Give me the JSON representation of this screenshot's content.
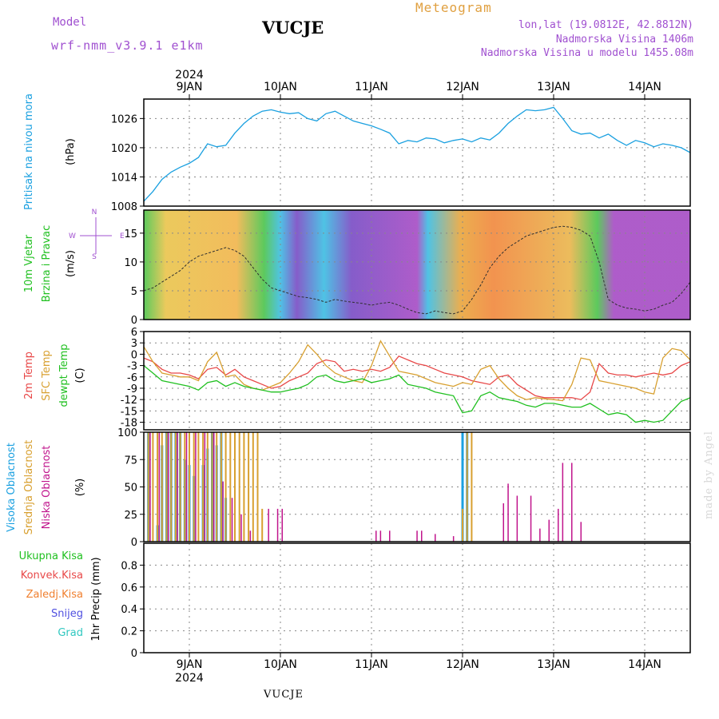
{
  "header": {
    "model_label": "Model",
    "model_name": "wrf-nmm_v3.9.1 e1km",
    "title": "VUCJE",
    "meteogram_label": "Meteogram",
    "lonlat": "lon,lat (19.0812E, 42.8812N)",
    "elevation": "Nadmorska Visina 1406m",
    "model_elevation": "Nadmorska Visina u modelu 1455.08m"
  },
  "footer_title": "VUCJE",
  "watermark": "made by Angel",
  "colors": {
    "pressure": "#1aa0e0",
    "temp2m": "#e84848",
    "sfc": "#d8a030",
    "dewpt": "#20c020",
    "high_cloud": "#1aa0e0",
    "mid_cloud": "#d8a030",
    "low_cloud": "#c0148c",
    "frame": "#000000",
    "grid": "#888888"
  },
  "chart_data": [
    {
      "type": "line",
      "title": "",
      "ylabel_lines": [
        "Pritisak na nivou mora",
        "(hPa)"
      ],
      "ylim": [
        1008,
        1030
      ],
      "yticks": [
        "1008",
        "1014",
        "1020",
        "1026"
      ],
      "xlim": [
        8.5,
        14.5
      ],
      "x_day_labels": [
        "9JAN",
        "10JAN",
        "11JAN",
        "12JAN",
        "13JAN",
        "14JAN"
      ],
      "top_year": "2024",
      "series": [
        {
          "name": "pressure",
          "x": [
            8.5,
            8.6,
            8.7,
            8.8,
            8.9,
            9.0,
            9.1,
            9.2,
            9.3,
            9.4,
            9.5,
            9.6,
            9.7,
            9.8,
            9.9,
            10.0,
            10.1,
            10.2,
            10.3,
            10.4,
            10.5,
            10.6,
            10.7,
            10.8,
            10.9,
            11.0,
            11.1,
            11.2,
            11.3,
            11.4,
            11.5,
            11.6,
            11.7,
            11.8,
            11.9,
            12.0,
            12.1,
            12.2,
            12.3,
            12.4,
            12.5,
            12.6,
            12.7,
            12.8,
            12.9,
            13.0,
            13.1,
            13.2,
            13.3,
            13.4,
            13.5,
            13.6,
            13.7,
            13.8,
            13.9,
            14.0,
            14.1,
            14.2,
            14.3,
            14.4,
            14.5
          ],
          "values": [
            1009.0,
            1011.0,
            1013.5,
            1015.0,
            1016.0,
            1016.8,
            1018.0,
            1020.8,
            1020.2,
            1020.5,
            1023.0,
            1025.0,
            1026.5,
            1027.5,
            1027.8,
            1027.3,
            1027.0,
            1027.2,
            1026.0,
            1025.5,
            1027.0,
            1027.5,
            1026.5,
            1025.5,
            1025.0,
            1024.5,
            1023.8,
            1023.0,
            1020.8,
            1021.5,
            1021.2,
            1022.0,
            1021.8,
            1021.0,
            1021.5,
            1021.8,
            1021.2,
            1022.0,
            1021.6,
            1023.0,
            1025.0,
            1026.5,
            1027.8,
            1027.6,
            1027.8,
            1028.3,
            1026.0,
            1023.5,
            1022.8,
            1023.0,
            1022.0,
            1022.8,
            1021.5,
            1020.5,
            1021.5,
            1021.0,
            1020.2,
            1020.8,
            1020.5,
            1020.0,
            1019.0
          ]
        }
      ]
    },
    {
      "type": "line",
      "title": "",
      "ylabel_lines": [
        "10m Vjetar",
        "Brzina i Pravac",
        "(m/s)"
      ],
      "compass_labels": [
        "W",
        "E",
        "N",
        "S"
      ],
      "ylim": [
        0,
        19
      ],
      "yticks": [
        "0",
        "5",
        "10",
        "15"
      ],
      "xlim": [
        8.5,
        14.5
      ],
      "series": [
        {
          "name": "wind speed",
          "x": [
            8.5,
            8.6,
            8.7,
            8.8,
            8.9,
            9.0,
            9.1,
            9.2,
            9.3,
            9.4,
            9.5,
            9.6,
            9.7,
            9.8,
            9.9,
            10.0,
            10.1,
            10.2,
            10.3,
            10.4,
            10.5,
            10.6,
            10.7,
            10.8,
            10.9,
            11.0,
            11.1,
            11.2,
            11.3,
            11.4,
            11.5,
            11.6,
            11.7,
            11.8,
            11.9,
            12.0,
            12.1,
            12.2,
            12.3,
            12.4,
            12.5,
            12.6,
            12.7,
            12.8,
            12.9,
            13.0,
            13.1,
            13.2,
            13.3,
            13.4,
            13.5,
            13.6,
            13.7,
            13.8,
            13.9,
            14.0,
            14.1,
            14.2,
            14.3,
            14.4,
            14.5
          ],
          "values": [
            5.0,
            5.5,
            6.5,
            7.5,
            8.5,
            10.0,
            11.0,
            11.5,
            12.0,
            12.5,
            12.0,
            11.0,
            9.0,
            7.0,
            5.5,
            5.0,
            4.5,
            4.0,
            3.8,
            3.5,
            3.0,
            3.5,
            3.2,
            3.0,
            2.8,
            2.5,
            2.8,
            3.0,
            2.5,
            1.8,
            1.2,
            1.0,
            1.5,
            1.2,
            1.0,
            1.5,
            3.5,
            6.0,
            9.0,
            11.0,
            12.5,
            13.5,
            14.5,
            15.0,
            15.5,
            16.0,
            16.2,
            16.0,
            15.5,
            14.5,
            10.0,
            3.5,
            2.5,
            2.0,
            1.8,
            1.5,
            1.8,
            2.5,
            3.0,
            4.5,
            6.5
          ]
        }
      ]
    },
    {
      "type": "line",
      "title": "",
      "ylabel_lines": [
        "2m Temp",
        "SFC Temp",
        "dewpt Temp",
        "(C)"
      ],
      "ylim": [
        -20,
        6
      ],
      "yticks": [
        "-18",
        "-15",
        "-12",
        "-9",
        "-6",
        "-3",
        "0",
        "3",
        "6"
      ],
      "xlim": [
        8.5,
        14.5
      ],
      "series": [
        {
          "name": "2m Temp",
          "x": [
            8.5,
            8.6,
            8.7,
            8.8,
            8.9,
            9.0,
            9.1,
            9.2,
            9.3,
            9.4,
            9.5,
            9.6,
            9.7,
            9.8,
            9.9,
            10.0,
            10.1,
            10.2,
            10.3,
            10.4,
            10.5,
            10.6,
            10.7,
            10.8,
            10.9,
            11.0,
            11.1,
            11.2,
            11.3,
            11.4,
            11.5,
            11.6,
            11.7,
            11.8,
            11.9,
            12.0,
            12.1,
            12.2,
            12.3,
            12.4,
            12.5,
            12.6,
            12.7,
            12.8,
            12.9,
            13.0,
            13.1,
            13.2,
            13.3,
            13.4,
            13.5,
            13.6,
            13.7,
            13.8,
            13.9,
            14.0,
            14.1,
            14.2,
            14.3,
            14.4,
            14.5
          ],
          "values": [
            -1.0,
            -2.0,
            -4.0,
            -5.0,
            -5.0,
            -5.5,
            -6.5,
            -4.0,
            -3.5,
            -5.5,
            -4.0,
            -6.0,
            -7.0,
            -8.0,
            -9.0,
            -8.5,
            -7.0,
            -6.0,
            -5.0,
            -2.5,
            -1.5,
            -2.0,
            -4.5,
            -4.0,
            -4.5,
            -4.0,
            -4.5,
            -3.5,
            -0.5,
            -1.5,
            -2.5,
            -3.0,
            -4.0,
            -5.0,
            -5.5,
            -6.0,
            -7.0,
            -7.5,
            -8.0,
            -6.0,
            -5.5,
            -8.0,
            -9.5,
            -11.0,
            -11.5,
            -11.5,
            -11.5,
            -11.5,
            -12.0,
            -10.0,
            -2.5,
            -5.0,
            -5.5,
            -5.5,
            -6.0,
            -5.5,
            -5.0,
            -5.5,
            -5.0,
            -3.0,
            -2.0
          ]
        },
        {
          "name": "SFC Temp",
          "x": [
            8.5,
            8.6,
            8.7,
            8.8,
            8.9,
            9.0,
            9.1,
            9.2,
            9.3,
            9.4,
            9.5,
            9.6,
            9.7,
            9.8,
            9.9,
            10.0,
            10.1,
            10.2,
            10.3,
            10.4,
            10.5,
            10.6,
            10.7,
            10.8,
            10.9,
            11.0,
            11.1,
            11.2,
            11.3,
            11.4,
            11.5,
            11.6,
            11.7,
            11.8,
            11.9,
            12.0,
            12.1,
            12.2,
            12.3,
            12.4,
            12.5,
            12.6,
            12.7,
            12.8,
            12.9,
            13.0,
            13.1,
            13.2,
            13.3,
            13.4,
            13.5,
            13.6,
            13.7,
            13.8,
            13.9,
            14.0,
            14.1,
            14.2,
            14.3,
            14.4,
            14.5
          ],
          "values": [
            2.0,
            -2.0,
            -5.0,
            -5.5,
            -6.0,
            -6.0,
            -7.0,
            -2.0,
            0.5,
            -6.0,
            -5.5,
            -8.0,
            -9.0,
            -9.5,
            -8.5,
            -7.5,
            -5.0,
            -2.0,
            2.5,
            0.0,
            -3.0,
            -5.0,
            -6.0,
            -7.0,
            -7.5,
            -3.0,
            3.5,
            -0.5,
            -4.5,
            -5.0,
            -5.5,
            -6.5,
            -7.5,
            -8.0,
            -8.5,
            -7.5,
            -8.0,
            -4.0,
            -3.0,
            -6.5,
            -9.0,
            -11.0,
            -12.0,
            -11.5,
            -11.8,
            -12.0,
            -12.3,
            -8.0,
            -1.0,
            -1.5,
            -7.0,
            -7.5,
            -8.0,
            -8.5,
            -9.0,
            -10.0,
            -10.5,
            -1.0,
            1.5,
            1.0,
            -1.5
          ]
        },
        {
          "name": "dewpt Temp",
          "x": [
            8.5,
            8.6,
            8.7,
            8.8,
            8.9,
            9.0,
            9.1,
            9.2,
            9.3,
            9.4,
            9.5,
            9.6,
            9.7,
            9.8,
            9.9,
            10.0,
            10.1,
            10.2,
            10.3,
            10.4,
            10.5,
            10.6,
            10.7,
            10.8,
            10.9,
            11.0,
            11.1,
            11.2,
            11.3,
            11.4,
            11.5,
            11.6,
            11.7,
            11.8,
            11.9,
            12.0,
            12.1,
            12.2,
            12.3,
            12.4,
            12.5,
            12.6,
            12.7,
            12.8,
            12.9,
            13.0,
            13.1,
            13.2,
            13.3,
            13.4,
            13.5,
            13.6,
            13.7,
            13.8,
            13.9,
            14.0,
            14.1,
            14.2,
            14.3,
            14.4,
            14.5
          ],
          "values": [
            -3.0,
            -5.0,
            -7.0,
            -7.5,
            -8.0,
            -8.5,
            -9.5,
            -7.5,
            -7.0,
            -8.5,
            -7.5,
            -8.5,
            -9.0,
            -9.5,
            -10.0,
            -10.0,
            -9.5,
            -9.0,
            -8.0,
            -6.0,
            -5.5,
            -7.0,
            -7.5,
            -7.0,
            -6.5,
            -7.5,
            -7.0,
            -6.5,
            -5.5,
            -8.0,
            -8.5,
            -9.0,
            -10.0,
            -10.5,
            -11.0,
            -15.5,
            -15.0,
            -11.0,
            -10.0,
            -11.5,
            -12.0,
            -12.5,
            -13.5,
            -14.0,
            -13.0,
            -13.0,
            -13.5,
            -14.0,
            -14.0,
            -13.0,
            -14.5,
            -16.0,
            -15.5,
            -16.0,
            -18.0,
            -17.5,
            -18.0,
            -17.5,
            -15.0,
            -12.5,
            -11.5
          ]
        }
      ]
    },
    {
      "type": "bar",
      "title": "",
      "ylabel_lines": [
        "Visoka Oblacnost",
        "Srednja Oblacnost",
        "Niska Oblacnost",
        "(%)"
      ],
      "ylim": [
        0,
        100
      ],
      "yticks": [
        "0",
        "25",
        "50",
        "75",
        "100"
      ],
      "xlim": [
        8.5,
        14.5
      ],
      "series": [
        {
          "name": "Visoka Oblacnost",
          "x": [
            8.55,
            8.65,
            8.7,
            8.75,
            8.8,
            8.85,
            8.9,
            8.95,
            9.0,
            9.05,
            9.15,
            9.2,
            9.25,
            9.3,
            9.35,
            9.4,
            12.0,
            12.05
          ],
          "values": [
            100,
            15,
            88,
            100,
            100,
            100,
            100,
            75,
            70,
            60,
            70,
            85,
            100,
            88,
            100,
            40,
            100,
            100
          ]
        },
        {
          "name": "Srednja Oblacnost",
          "x": [
            8.55,
            8.6,
            8.65,
            8.7,
            8.75,
            8.8,
            8.85,
            8.9,
            8.95,
            9.0,
            9.05,
            9.1,
            9.15,
            9.2,
            9.25,
            9.3,
            9.35,
            9.4,
            9.45,
            9.5,
            9.55,
            9.6,
            9.65,
            9.7,
            9.75,
            9.8,
            12.0,
            12.05,
            12.1
          ],
          "values": [
            100,
            100,
            100,
            100,
            100,
            100,
            100,
            100,
            100,
            100,
            100,
            100,
            100,
            100,
            100,
            100,
            100,
            100,
            100,
            100,
            100,
            100,
            100,
            100,
            100,
            30,
            30,
            100,
            100
          ]
        },
        {
          "name": "Niska Oblacnost",
          "x": [
            8.57,
            8.67,
            8.77,
            8.87,
            8.97,
            9.07,
            9.17,
            9.27,
            9.37,
            9.47,
            9.57,
            9.67,
            9.87,
            9.97,
            10.02,
            11.05,
            11.1,
            11.2,
            11.5,
            11.55,
            11.7,
            11.9,
            12.45,
            12.5,
            12.6,
            12.75,
            12.85,
            12.95,
            13.05,
            13.1,
            13.2,
            13.3
          ],
          "values": [
            100,
            100,
            100,
            100,
            100,
            100,
            100,
            100,
            55,
            40,
            25,
            10,
            30,
            30,
            30,
            10,
            10,
            10,
            10,
            10,
            7,
            5,
            35,
            53,
            42,
            42,
            12,
            20,
            30,
            72,
            72,
            18
          ]
        }
      ]
    },
    {
      "type": "bar",
      "title": "",
      "ylabel_lines": [
        "1hr Precip (mm)"
      ],
      "legend": [
        "Ukupna Kisa",
        "Konvek.Kisa",
        "Zaledj.Kisa",
        "Snijeg",
        "Grad"
      ],
      "legend_colors": [
        "#20c020",
        "#e84848",
        "#f08030",
        "#5050e0",
        "#30c8c0"
      ],
      "ylim": [
        0,
        1.0
      ],
      "yticks": [
        "0",
        "0.2",
        "0.4",
        "0.6",
        "0.8"
      ],
      "xlim": [
        8.5,
        14.5
      ],
      "x_day_labels": [
        "9JAN",
        "10JAN",
        "11JAN",
        "12JAN",
        "13JAN",
        "14JAN"
      ],
      "bottom_year": "2024",
      "series": []
    }
  ]
}
